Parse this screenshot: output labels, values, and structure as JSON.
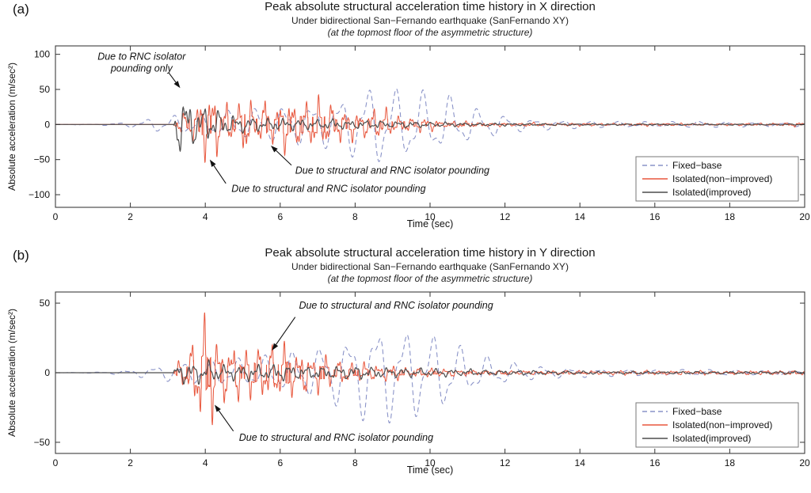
{
  "chart_data": [
    {
      "type": "line",
      "panel_label": "(a)",
      "title": "Peak absolute structural acceleration time history in X direction",
      "subtitle": "Under bidirectional San−Fernando earthquake (SanFernando XY)",
      "subtitle2": "(at the topmost floor of the asymmetric structure)",
      "xlabel": "Time (sec)",
      "ylabel": "Absolute acceleration (m/sec²)",
      "xlim": [
        0,
        20
      ],
      "ylim": [
        -118,
        112
      ],
      "xticks": [
        0,
        2,
        4,
        6,
        8,
        10,
        12,
        14,
        16,
        18,
        20
      ],
      "yticks": [
        -100,
        -50,
        0,
        50,
        100
      ],
      "legend": {
        "position": "lower right"
      },
      "series": [
        {
          "name": "Fixed−base",
          "color": "#8a93c8",
          "style": "dashed",
          "kind": "smooth",
          "seed": 7,
          "envelope": [
            [
              0,
              0
            ],
            [
              1.2,
              1
            ],
            [
              2,
              4
            ],
            [
              2.6,
              10
            ],
            [
              3.2,
              14
            ],
            [
              4,
              16
            ],
            [
              4.8,
              22
            ],
            [
              5.6,
              26
            ],
            [
              6.4,
              30
            ],
            [
              7.2,
              34
            ],
            [
              7.8,
              45
            ],
            [
              8.3,
              58
            ],
            [
              8.7,
              62
            ],
            [
              9.2,
              52
            ],
            [
              9.6,
              58
            ],
            [
              10,
              42
            ],
            [
              10.4,
              48
            ],
            [
              10.8,
              32
            ],
            [
              11.4,
              22
            ],
            [
              12,
              14
            ],
            [
              12.6,
              9
            ],
            [
              13.4,
              7
            ],
            [
              14.5,
              5
            ],
            [
              16,
              4
            ],
            [
              17,
              5
            ],
            [
              18,
              4
            ],
            [
              19,
              3
            ],
            [
              20,
              3
            ]
          ]
        },
        {
          "name": "Isolated(non−improved)",
          "color": "#e8573d",
          "style": "solid",
          "kind": "spiky",
          "seed": 13,
          "envelope": [
            [
              0,
              0
            ],
            [
              3.15,
              0
            ],
            [
              3.3,
              18
            ],
            [
              3.6,
              35
            ],
            [
              3.85,
              55
            ],
            [
              4,
              95
            ],
            [
              4.15,
              70
            ],
            [
              4.4,
              45
            ],
            [
              4.7,
              40
            ],
            [
              5,
              48
            ],
            [
              5.3,
              38
            ],
            [
              5.6,
              52
            ],
            [
              5.9,
              40
            ],
            [
              6.3,
              46
            ],
            [
              6.7,
              38
            ],
            [
              7.1,
              42
            ],
            [
              7.5,
              34
            ],
            [
              8,
              30
            ],
            [
              8.5,
              26
            ],
            [
              9,
              22
            ],
            [
              9.5,
              16
            ],
            [
              10,
              10
            ],
            [
              10.5,
              7
            ],
            [
              11,
              5
            ],
            [
              12,
              4
            ],
            [
              13,
              3
            ],
            [
              14,
              2.5
            ],
            [
              15,
              2
            ],
            [
              16,
              3
            ],
            [
              17,
              2
            ],
            [
              18,
              2
            ],
            [
              19,
              2.5
            ],
            [
              20,
              4
            ]
          ]
        },
        {
          "name": "Isolated(improved)",
          "color": "#4d4d4d",
          "style": "solid",
          "kind": "spiky_small",
          "seed": 29,
          "envelope": [
            [
              0,
              0
            ],
            [
              3.15,
              0
            ],
            [
              3.25,
              48
            ],
            [
              3.45,
              40
            ],
            [
              3.7,
              32
            ],
            [
              4,
              28
            ],
            [
              4.3,
              22
            ],
            [
              4.7,
              15
            ],
            [
              5.1,
              11
            ],
            [
              5.6,
              10
            ],
            [
              6.2,
              9
            ],
            [
              7,
              8
            ],
            [
              8,
              7
            ],
            [
              9,
              5
            ],
            [
              10,
              4
            ],
            [
              11,
              2.5
            ],
            [
              12,
              2
            ],
            [
              13,
              1.5
            ],
            [
              14,
              1.2
            ],
            [
              16,
              1
            ],
            [
              18,
              1
            ],
            [
              20,
              1
            ]
          ]
        }
      ],
      "annotations": [
        {
          "lines": [
            "Due to RNC isolator",
            "pounding only"
          ],
          "anchor": "middle",
          "tx": 2.3,
          "ty": 92,
          "arrow": {
            "x1": 3.02,
            "y1": 74,
            "x2": 3.33,
            "y2": 52
          }
        },
        {
          "lines": [
            "Due to structural and RNC isolator pounding"
          ],
          "anchor": "start",
          "tx": 6.4,
          "ty": -70,
          "arrow": {
            "x1": 6.3,
            "y1": -58,
            "x2": 5.75,
            "y2": -30
          }
        },
        {
          "lines": [
            "Due to structural and RNC isolator pounding"
          ],
          "anchor": "start",
          "tx": 4.7,
          "ty": -96,
          "arrow": {
            "x1": 4.55,
            "y1": -84,
            "x2": 4.12,
            "y2": -50
          }
        }
      ]
    },
    {
      "type": "line",
      "panel_label": "(b)",
      "title": "Peak absolute structural acceleration time history in Y direction",
      "subtitle": "Under bidirectional San−Fernando earthquake (SanFernando XY)",
      "subtitle2": "(at the topmost floor of the asymmetric structure)",
      "xlabel": "Time (sec)",
      "ylabel": "Absolute acceleration (m/sec²)",
      "xlim": [
        0,
        20
      ],
      "ylim": [
        -58,
        58
      ],
      "xticks": [
        0,
        2,
        4,
        6,
        8,
        10,
        12,
        14,
        16,
        18,
        20
      ],
      "yticks": [
        -50,
        0,
        50
      ],
      "legend": {
        "position": "lower right"
      },
      "series": [
        {
          "name": "Fixed−base",
          "color": "#8a93c8",
          "style": "dashed",
          "kind": "smooth",
          "seed": 17,
          "envelope": [
            [
              0,
              0
            ],
            [
              1.2,
              0.5
            ],
            [
              2,
              2
            ],
            [
              2.6,
              5
            ],
            [
              3.2,
              7
            ],
            [
              4,
              9
            ],
            [
              5,
              11
            ],
            [
              6,
              14
            ],
            [
              7,
              20
            ],
            [
              7.8,
              28
            ],
            [
              8.3,
              36
            ],
            [
              8.7,
              40
            ],
            [
              9.2,
              33
            ],
            [
              9.6,
              36
            ],
            [
              10,
              28
            ],
            [
              10.4,
              30
            ],
            [
              10.8,
              20
            ],
            [
              11.4,
              13
            ],
            [
              12,
              9
            ],
            [
              12.6,
              6
            ],
            [
              13.4,
              4
            ],
            [
              14.5,
              3
            ],
            [
              16,
              2
            ],
            [
              17,
              2.5
            ],
            [
              18,
              2
            ],
            [
              19,
              1.5
            ],
            [
              20,
              1.5
            ]
          ]
        },
        {
          "name": "Isolated(non−improved)",
          "color": "#e8573d",
          "style": "solid",
          "kind": "spiky",
          "seed": 23,
          "envelope": [
            [
              0,
              0
            ],
            [
              3.15,
              0
            ],
            [
              3.3,
              12
            ],
            [
              3.6,
              25
            ],
            [
              3.85,
              35
            ],
            [
              4,
              52
            ],
            [
              4.15,
              45
            ],
            [
              4.4,
              32
            ],
            [
              4.7,
              24
            ],
            [
              5,
              22
            ],
            [
              5.4,
              28
            ],
            [
              5.7,
              44
            ],
            [
              5.95,
              30
            ],
            [
              6.3,
              24
            ],
            [
              6.7,
              20
            ],
            [
              7.1,
              16
            ],
            [
              7.5,
              13
            ],
            [
              8,
              10
            ],
            [
              8.5,
              8
            ],
            [
              9,
              6
            ],
            [
              9.5,
              5
            ],
            [
              10,
              4
            ],
            [
              11,
              3
            ],
            [
              12,
              2.5
            ],
            [
              13,
              2
            ],
            [
              14,
              2
            ],
            [
              16,
              2
            ],
            [
              18,
              2
            ],
            [
              20,
              2.5
            ]
          ]
        },
        {
          "name": "Isolated(improved)",
          "color": "#4d4d4d",
          "style": "solid",
          "kind": "spiky_small",
          "seed": 41,
          "envelope": [
            [
              0,
              0
            ],
            [
              3.15,
              0
            ],
            [
              3.25,
              10
            ],
            [
              3.5,
              8
            ],
            [
              4,
              8
            ],
            [
              4.5,
              7
            ],
            [
              5,
              6
            ],
            [
              6,
              6
            ],
            [
              7,
              5
            ],
            [
              8,
              5
            ],
            [
              9,
              4
            ],
            [
              10,
              3
            ],
            [
              11,
              2.5
            ],
            [
              12,
              2
            ],
            [
              13,
              1.5
            ],
            [
              14,
              1.2
            ],
            [
              16,
              1
            ],
            [
              18,
              1
            ],
            [
              20,
              1
            ]
          ]
        }
      ],
      "annotations": [
        {
          "lines": [
            "Due to structural and RNC isolator pounding"
          ],
          "anchor": "start",
          "tx": 6.5,
          "ty": 46,
          "arrow": {
            "x1": 6.4,
            "y1": 40,
            "x2": 5.78,
            "y2": 16
          }
        },
        {
          "lines": [
            "Due to structural and RNC isolator pounding"
          ],
          "anchor": "start",
          "tx": 4.9,
          "ty": -49,
          "arrow": {
            "x1": 4.75,
            "y1": -42,
            "x2": 4.25,
            "y2": -23
          }
        }
      ]
    }
  ]
}
